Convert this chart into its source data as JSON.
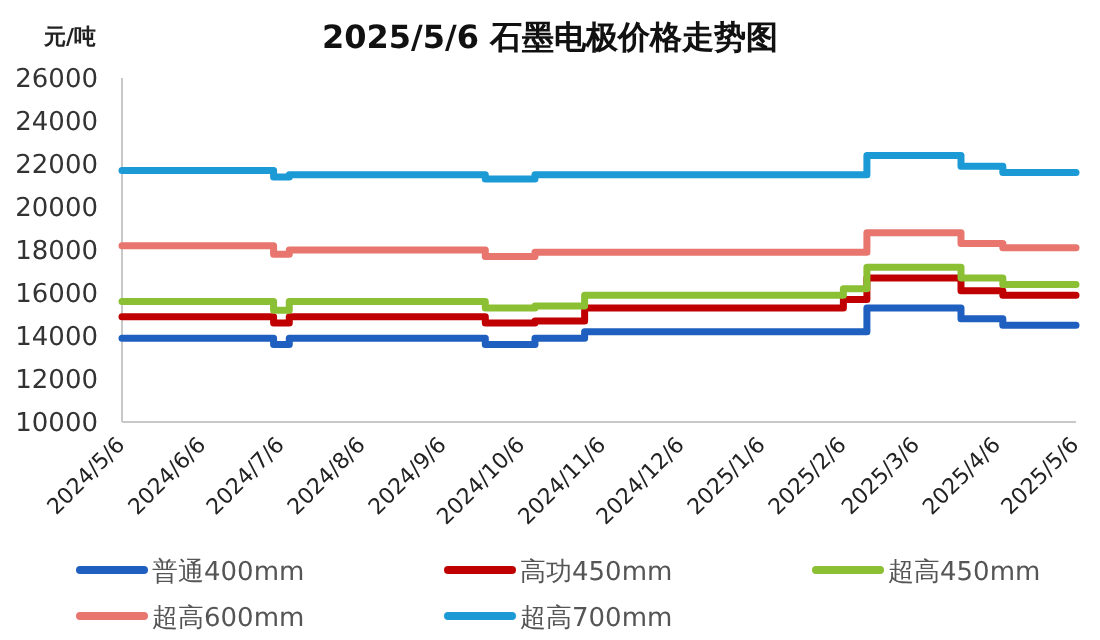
{
  "chart_data": {
    "type": "step",
    "title": "2025/5/6 石墨电极价格走势图",
    "ylabel": "元/吨",
    "xlim": [
      "2024-05-06",
      "2025-05-06"
    ],
    "xticks": [
      {
        "value": "2024-05-06",
        "label": "2024/5/6"
      },
      {
        "value": "2024-06-06",
        "label": "2024/6/6"
      },
      {
        "value": "2024-07-06",
        "label": "2024/7/6"
      },
      {
        "value": "2024-08-06",
        "label": "2024/8/6"
      },
      {
        "value": "2024-09-06",
        "label": "2024/9/6"
      },
      {
        "value": "2024-10-06",
        "label": "2024/10/6"
      },
      {
        "value": "2024-11-06",
        "label": "2024/11/6"
      },
      {
        "value": "2024-12-06",
        "label": "2024/12/6"
      },
      {
        "value": "2025-01-06",
        "label": "2025/1/6"
      },
      {
        "value": "2025-02-06",
        "label": "2025/2/6"
      },
      {
        "value": "2025-03-06",
        "label": "2025/3/6"
      },
      {
        "value": "2025-04-06",
        "label": "2025/4/6"
      },
      {
        "value": "2025-05-06",
        "label": "2025/5/6"
      }
    ],
    "ylim": [
      10000,
      26000
    ],
    "yticks": [
      10000,
      12000,
      14000,
      16000,
      18000,
      20000,
      22000,
      24000,
      26000
    ],
    "grid": false,
    "legend": "bottom",
    "line_style": "solid",
    "marker": "none",
    "series": [
      {
        "name": "普通400mm",
        "color": "#1f5fbf",
        "x": [
          "2024-05-06",
          "2024-07-03",
          "2024-07-09",
          "2024-09-22",
          "2024-10-11",
          "2024-10-30",
          "2025-02-15",
          "2025-03-23",
          "2025-04-08",
          "2025-05-06"
        ],
        "values": [
          13900,
          13600,
          13900,
          13600,
          13900,
          14200,
          15300,
          14800,
          14500,
          14500
        ]
      },
      {
        "name": "高功450mm",
        "color": "#c00000",
        "x": [
          "2024-05-06",
          "2024-07-03",
          "2024-07-09",
          "2024-09-22",
          "2024-10-11",
          "2024-10-30",
          "2025-02-06",
          "2025-02-15",
          "2025-03-23",
          "2025-04-08",
          "2025-05-06"
        ],
        "values": [
          14900,
          14600,
          14900,
          14600,
          14700,
          15300,
          15700,
          16700,
          16100,
          15900,
          15900
        ]
      },
      {
        "name": "超高450mm",
        "color": "#8cc034",
        "x": [
          "2024-05-06",
          "2024-07-03",
          "2024-07-09",
          "2024-09-22",
          "2024-10-11",
          "2024-10-30",
          "2025-02-06",
          "2025-02-15",
          "2025-03-23",
          "2025-04-08",
          "2025-05-06"
        ],
        "values": [
          15600,
          15200,
          15600,
          15300,
          15400,
          15900,
          16200,
          17200,
          16700,
          16400,
          16400
        ]
      },
      {
        "name": "超高600mm",
        "color": "#e8766e",
        "x": [
          "2024-05-06",
          "2024-07-03",
          "2024-07-09",
          "2024-09-22",
          "2024-10-11",
          "2025-02-15",
          "2025-03-23",
          "2025-04-08",
          "2025-05-06"
        ],
        "values": [
          18200,
          17800,
          18000,
          17700,
          17900,
          18800,
          18300,
          18100,
          18100
        ]
      },
      {
        "name": "超高700mm",
        "color": "#1b9ad6",
        "x": [
          "2024-05-06",
          "2024-07-03",
          "2024-07-09",
          "2024-09-22",
          "2024-10-11",
          "2025-02-15",
          "2025-03-23",
          "2025-04-08",
          "2025-05-06"
        ],
        "values": [
          21700,
          21400,
          21500,
          21300,
          21500,
          22400,
          21900,
          21600,
          21600
        ]
      }
    ]
  }
}
